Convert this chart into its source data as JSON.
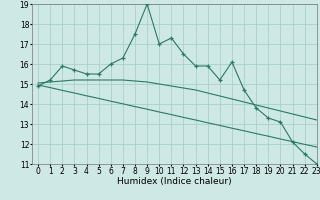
{
  "x": [
    0,
    1,
    2,
    3,
    4,
    5,
    6,
    7,
    8,
    9,
    10,
    11,
    12,
    13,
    14,
    15,
    16,
    17,
    18,
    19,
    20,
    21,
    22,
    23
  ],
  "y_main": [
    14.9,
    15.2,
    15.9,
    15.7,
    15.5,
    15.5,
    16.0,
    16.3,
    17.5,
    19.0,
    17.0,
    17.3,
    16.5,
    15.9,
    15.9,
    15.2,
    16.1,
    14.7,
    13.8,
    13.3,
    13.1,
    12.1,
    11.5,
    11.0
  ],
  "y_trend1": [
    15.05,
    15.1,
    15.15,
    15.2,
    15.2,
    15.2,
    15.2,
    15.2,
    15.15,
    15.1,
    15.0,
    14.9,
    14.8,
    14.7,
    14.55,
    14.4,
    14.25,
    14.1,
    13.95,
    13.8,
    13.65,
    13.5,
    13.35,
    13.2
  ],
  "y_trend2": [
    14.95,
    14.82,
    14.68,
    14.55,
    14.41,
    14.28,
    14.14,
    14.01,
    13.87,
    13.74,
    13.6,
    13.47,
    13.33,
    13.2,
    13.06,
    12.93,
    12.79,
    12.66,
    12.52,
    12.39,
    12.25,
    12.12,
    11.98,
    11.85
  ],
  "line_color": "#2a7a65",
  "bg_color": "#cde8e5",
  "grid_color": "#aacfcc",
  "xlabel": "Humidex (Indice chaleur)",
  "ylim": [
    11,
    19
  ],
  "xlim": [
    -0.5,
    23
  ],
  "yticks": [
    11,
    12,
    13,
    14,
    15,
    16,
    17,
    18,
    19
  ],
  "xticks": [
    0,
    1,
    2,
    3,
    4,
    5,
    6,
    7,
    8,
    9,
    10,
    11,
    12,
    13,
    14,
    15,
    16,
    17,
    18,
    19,
    20,
    21,
    22,
    23
  ],
  "xlabel_fontsize": 6.5,
  "tick_fontsize": 5.5
}
